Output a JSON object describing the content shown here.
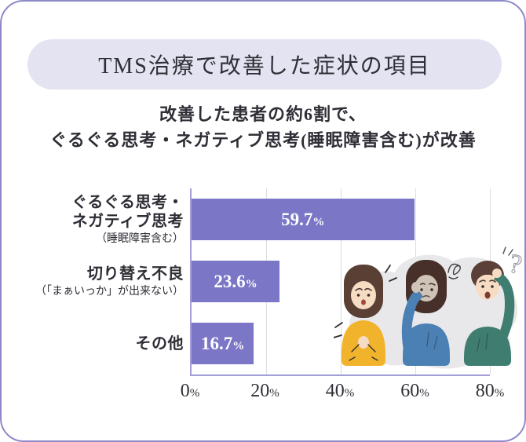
{
  "banner": {
    "title": "TMS治療で改善した症状の項目"
  },
  "subtitle": {
    "line1": "改善した患者の約6割で、",
    "line2": "ぐるぐる思考・ネガティブ思考(睡眠障害含む)が改善"
  },
  "chart_data": {
    "type": "bar",
    "orientation": "horizontal",
    "title": "TMS治療で改善した症状の項目",
    "categories": [
      {
        "label_lines": [
          "ぐるぐる思考・",
          "ネガティブ思考"
        ],
        "sublabel": "（睡眠障害含む）"
      },
      {
        "label_lines": [
          "切り替え不良"
        ],
        "sublabel": "（「まぁいっか」が出来ない）"
      },
      {
        "label_lines": [
          "その他"
        ],
        "sublabel": ""
      }
    ],
    "values": [
      59.7,
      23.6,
      16.7
    ],
    "value_labels": [
      "59.7",
      "23.6",
      "16.7"
    ],
    "unit": "%",
    "xlim": [
      0,
      80
    ],
    "x_ticks": [
      "0",
      "20",
      "40",
      "60",
      "80"
    ],
    "grid": true,
    "bar_color": "#7b76c6",
    "value_label_color": "#ffffff",
    "axis_color": "#a29ed8",
    "gridline_color": "#dcdce3"
  },
  "illustration": {
    "subjects": [
      "worried-woman-yellow",
      "gloomy-person-blue",
      "confused-man-teal"
    ],
    "doodles": [
      "scribble-cloud",
      "question-mark",
      "stress-marks"
    ]
  }
}
